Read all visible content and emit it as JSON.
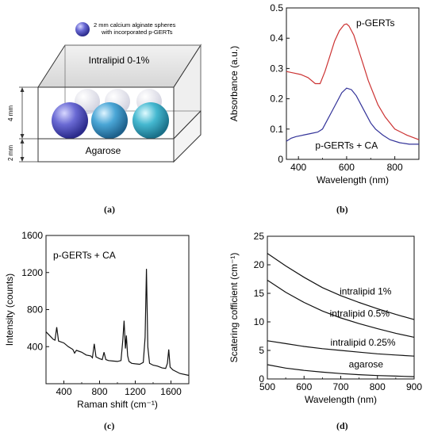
{
  "panel_a": {
    "top_label_line1": "2 mm calcium alginate spheres",
    "top_label_line2": "with incorporated p-GERTs",
    "upper_layer_label": "Intralipid 0-1%",
    "lower_layer_label": "Agarose",
    "height_top": "4 mm",
    "height_bottom": "2 mm",
    "caption": "(a)",
    "colors": {
      "sphere_blue": "#5a5ac8",
      "sphere_teal": "#3fa8c8",
      "box_edge": "#333333"
    }
  },
  "chart_data": [
    {
      "type": "line",
      "caption": "(b)",
      "xlabel": "Wavelength (nm)",
      "ylabel": "Absorbance (a.u.)",
      "xlim": [
        350,
        900
      ],
      "ylim": [
        0,
        0.5
      ],
      "xticks": [
        400,
        600,
        800
      ],
      "yticks": [
        0,
        0.1,
        0.2,
        0.3,
        0.4,
        0.5
      ],
      "series": [
        {
          "name": "p-GERTs",
          "color": "#cc3333",
          "x": [
            350,
            380,
            410,
            440,
            470,
            490,
            510,
            530,
            550,
            570,
            590,
            600,
            610,
            630,
            650,
            670,
            690,
            710,
            730,
            760,
            800,
            850,
            900
          ],
          "y": [
            0.29,
            0.285,
            0.28,
            0.27,
            0.25,
            0.25,
            0.29,
            0.34,
            0.39,
            0.425,
            0.445,
            0.447,
            0.44,
            0.41,
            0.36,
            0.31,
            0.26,
            0.22,
            0.18,
            0.14,
            0.1,
            0.08,
            0.065
          ]
        },
        {
          "name": "p-GERTs + CA",
          "color": "#333399",
          "x": [
            350,
            370,
            390,
            420,
            450,
            480,
            500,
            520,
            540,
            560,
            580,
            600,
            620,
            640,
            660,
            680,
            700,
            720,
            750,
            780,
            820,
            860,
            900
          ],
          "y": [
            0.06,
            0.07,
            0.075,
            0.08,
            0.085,
            0.09,
            0.1,
            0.13,
            0.16,
            0.19,
            0.22,
            0.235,
            0.23,
            0.21,
            0.18,
            0.15,
            0.12,
            0.1,
            0.08,
            0.065,
            0.055,
            0.05,
            0.05
          ]
        }
      ]
    },
    {
      "type": "line",
      "caption": "(c)",
      "xlabel": "Raman shift (cm⁻¹)",
      "ylabel": "Intensity (counts)",
      "annotation": "p-GERTs + CA",
      "xlim": [
        200,
        1800
      ],
      "ylim": [
        0,
        1600
      ],
      "xticks": [
        400,
        800,
        1200,
        1600
      ],
      "yticks": [
        400,
        800,
        1200,
        1600
      ],
      "series": [
        {
          "name": "p-GERTs + CA",
          "color": "#111111",
          "x": [
            200,
            240,
            280,
            300,
            320,
            340,
            400,
            450,
            500,
            520,
            540,
            600,
            650,
            700,
            720,
            740,
            760,
            800,
            830,
            850,
            870,
            900,
            950,
            1000,
            1040,
            1060,
            1075,
            1090,
            1100,
            1115,
            1130,
            1160,
            1200,
            1250,
            1290,
            1310,
            1325,
            1340,
            1360,
            1400,
            1450,
            1500,
            1540,
            1560,
            1575,
            1590,
            1620,
            1700,
            1800
          ],
          "y": [
            560,
            520,
            480,
            470,
            610,
            460,
            440,
            400,
            370,
            330,
            360,
            340,
            310,
            300,
            280,
            430,
            290,
            270,
            260,
            340,
            260,
            250,
            245,
            240,
            250,
            470,
            680,
            380,
            520,
            300,
            240,
            220,
            215,
            210,
            230,
            500,
            1240,
            400,
            220,
            200,
            190,
            170,
            165,
            220,
            370,
            180,
            150,
            110,
            90
          ]
        }
      ]
    },
    {
      "type": "line",
      "caption": "(d)",
      "xlabel": "Wavelength (nm)",
      "ylabel": "Scatering cofficient (cm⁻¹)",
      "xlim": [
        500,
        900
      ],
      "ylim": [
        0,
        25
      ],
      "xticks": [
        500,
        600,
        700,
        800,
        900
      ],
      "yticks": [
        0,
        5,
        10,
        15,
        20,
        25
      ],
      "series": [
        {
          "name": "intralipid 1%",
          "color": "#111111",
          "x": [
            500,
            550,
            600,
            650,
            700,
            750,
            800,
            850,
            900
          ],
          "y": [
            22,
            19.8,
            17.8,
            16.0,
            14.6,
            13.4,
            12.3,
            11.3,
            10.4
          ]
        },
        {
          "name": "intralipid 0.5%",
          "color": "#111111",
          "x": [
            500,
            550,
            600,
            650,
            700,
            750,
            800,
            850,
            900
          ],
          "y": [
            17.3,
            15.2,
            13.4,
            11.9,
            10.7,
            9.7,
            8.8,
            8.0,
            7.3
          ]
        },
        {
          "name": "intralipid 0.25%",
          "color": "#111111",
          "x": [
            500,
            550,
            600,
            650,
            700,
            750,
            800,
            850,
            900
          ],
          "y": [
            6.7,
            6.2,
            5.7,
            5.3,
            5.0,
            4.7,
            4.4,
            4.2,
            4.0
          ]
        },
        {
          "name": "agarose",
          "color": "#111111",
          "x": [
            500,
            550,
            600,
            650,
            700,
            750,
            800,
            850,
            900
          ],
          "y": [
            2.5,
            1.9,
            1.5,
            1.2,
            0.95,
            0.75,
            0.6,
            0.5,
            0.4
          ]
        }
      ]
    }
  ]
}
